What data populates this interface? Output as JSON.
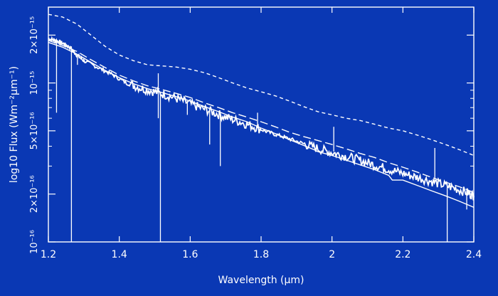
{
  "chart_data": {
    "type": "line",
    "xlabel": "Wavelength (μm)",
    "ylabel": "log10 Flux (Wm⁻²μm⁻¹)",
    "xlim": [
      1.2,
      2.4
    ],
    "ylim": [
      1e-16,
      3e-15
    ],
    "y_scale": "log",
    "grid": false,
    "colors": {
      "background": "#0a38b4",
      "foreground": "#ffffff"
    },
    "x_ticks": [
      {
        "value": 1.2,
        "label": "1.2"
      },
      {
        "value": 1.4,
        "label": "1.4"
      },
      {
        "value": 1.6,
        "label": "1.6"
      },
      {
        "value": 1.8,
        "label": "1.8"
      },
      {
        "value": 2.0,
        "label": "2"
      },
      {
        "value": 2.2,
        "label": "2.2"
      },
      {
        "value": 2.4,
        "label": "2.4"
      }
    ],
    "y_ticks": [
      {
        "value": 1e-16,
        "label": "10⁻¹⁶"
      },
      {
        "value": 2e-16,
        "label": "2×10⁻¹⁶"
      },
      {
        "value": 5e-16,
        "label": "5×10⁻¹⁶"
      },
      {
        "value": 1e-15,
        "label": "10⁻¹⁵"
      },
      {
        "value": 2e-15,
        "label": "2×10⁻¹⁵"
      }
    ],
    "series": [
      {
        "style": "short-dash",
        "x": [
          1.2,
          1.24,
          1.28,
          1.32,
          1.36,
          1.4,
          1.44,
          1.48,
          1.52,
          1.56,
          1.6,
          1.64,
          1.68,
          1.72,
          1.76,
          1.8,
          1.84,
          1.88,
          1.92,
          1.96,
          2.0,
          2.04,
          2.08,
          2.12,
          2.16,
          2.2,
          2.24,
          2.28,
          2.32,
          2.36,
          2.4
        ],
        "y": [
          2.7e-15,
          2.6e-15,
          2.35e-15,
          2e-15,
          1.7e-15,
          1.5e-15,
          1.38e-15,
          1.3e-15,
          1.28e-15,
          1.26e-15,
          1.22e-15,
          1.16e-15,
          1.08e-15,
          1e-15,
          9.3e-16,
          8.8e-16,
          8.3e-16,
          7.7e-16,
          7.1e-16,
          6.6e-16,
          6.3e-16,
          6e-16,
          5.8e-16,
          5.5e-16,
          5.2e-16,
          5e-16,
          4.7e-16,
          4.4e-16,
          4.1e-16,
          3.8e-16,
          3.5e-16
        ]
      },
      {
        "style": "noisy-solid",
        "x": [
          1.2,
          1.22,
          1.24,
          1.26,
          1.28,
          1.3,
          1.34,
          1.38,
          1.42,
          1.46,
          1.5,
          1.54,
          1.58,
          1.62,
          1.66,
          1.7,
          1.74,
          1.78,
          1.82,
          1.86,
          1.9,
          1.94,
          1.98,
          2.02,
          2.06,
          2.1,
          2.14,
          2.18,
          2.22,
          2.26,
          2.3,
          2.34,
          2.38,
          2.4
        ],
        "y": [
          1.9e-15,
          1.85e-15,
          1.78e-15,
          1.68e-15,
          1.5e-15,
          1.38e-15,
          1.25e-15,
          1.13e-15,
          1e-15,
          9.3e-16,
          8.8e-16,
          8.3e-16,
          7.7e-16,
          7.1e-16,
          6.6e-16,
          6.1e-16,
          5.7e-16,
          5.3e-16,
          4.9e-16,
          4.6e-16,
          4.3e-16,
          4e-16,
          3.75e-16,
          3.55e-16,
          3.35e-16,
          3.15e-16,
          2.95e-16,
          2.78e-16,
          2.62e-16,
          2.48e-16,
          2.33e-16,
          2.2e-16,
          2.05e-16,
          1.95e-16
        ]
      },
      {
        "style": "long-dash",
        "x": [
          1.2,
          1.24,
          1.28,
          1.32,
          1.36,
          1.4,
          1.44,
          1.48,
          1.52,
          1.56,
          1.6,
          1.64,
          1.68,
          1.72,
          1.76,
          1.8,
          1.84,
          1.88,
          1.92,
          1.96,
          2.0,
          2.04,
          2.08,
          2.12,
          2.16,
          2.2,
          2.24,
          2.28,
          2.32,
          2.36,
          2.4
        ],
        "y": [
          1.85e-15,
          1.72e-15,
          1.58e-15,
          1.4e-15,
          1.25e-15,
          1.12e-15,
          1.03e-15,
          9.6e-16,
          9.1e-16,
          8.6e-16,
          8.1e-16,
          7.5e-16,
          7e-16,
          6.5e-16,
          6.1e-16,
          5.7e-16,
          5.3e-16,
          4.9e-16,
          4.6e-16,
          4.35e-16,
          4.1e-16,
          3.85e-16,
          3.6e-16,
          3.4e-16,
          3.15e-16,
          2.95e-16,
          2.75e-16,
          2.55e-16,
          2.38e-16,
          2.22e-16,
          2.05e-16
        ]
      },
      {
        "style": "thin-solid",
        "x": [
          1.2,
          1.24,
          1.28,
          1.32,
          1.36,
          1.4,
          1.44,
          1.48,
          1.52,
          1.56,
          1.6,
          1.64,
          1.68,
          1.72,
          1.76,
          1.8,
          1.84,
          1.88,
          1.92,
          1.95,
          1.96,
          2.0,
          2.04,
          2.08,
          2.12,
          2.16,
          2.17,
          2.2,
          2.24,
          2.28,
          2.32,
          2.36,
          2.4
        ],
        "y": [
          1.8e-15,
          1.68e-15,
          1.52e-15,
          1.35e-15,
          1.2e-15,
          1.08e-15,
          9.9e-16,
          9.2e-16,
          8.7e-16,
          8.2e-16,
          7.7e-16,
          7.1e-16,
          6.6e-16,
          6.1e-16,
          5.7e-16,
          5.2e-16,
          4.8e-16,
          4.4e-16,
          4.05e-16,
          3.8e-16,
          3.7e-16,
          3.5e-16,
          3.27e-16,
          3.05e-16,
          2.85e-16,
          2.62e-16,
          2.45e-16,
          2.45e-16,
          2.27e-16,
          2.1e-16,
          1.95e-16,
          1.8e-16,
          1.65e-16
        ]
      }
    ],
    "spikes": [
      {
        "x": 1.223,
        "y_top": 1.8e-15,
        "y_bottom": 6.5e-16
      },
      {
        "x": 1.265,
        "y_top": 1.7e-15,
        "y_bottom": 1e-16
      },
      {
        "x": 1.282,
        "y_top": 1.5e-15,
        "y_bottom": 1.3e-15
      },
      {
        "x": 1.51,
        "y_top": 1.15e-15,
        "y_bottom": 6e-16
      },
      {
        "x": 1.516,
        "y_top": 8.6e-16,
        "y_bottom": 1e-16
      },
      {
        "x": 1.592,
        "y_top": 7.7e-16,
        "y_bottom": 6.3e-16
      },
      {
        "x": 1.655,
        "y_top": 6.9e-16,
        "y_bottom": 4.1e-16
      },
      {
        "x": 1.685,
        "y_top": 6.5e-16,
        "y_bottom": 3e-16
      },
      {
        "x": 1.79,
        "y_top": 6.5e-16,
        "y_bottom": 5.2e-16
      },
      {
        "x": 2.005,
        "y_top": 5.3e-16,
        "y_bottom": 3.7e-16
      },
      {
        "x": 2.29,
        "y_top": 3.9e-16,
        "y_bottom": 2.4e-16
      },
      {
        "x": 2.325,
        "y_top": 2.3e-16,
        "y_bottom": 1e-16
      },
      {
        "x": 2.38,
        "y_top": 2.1e-16,
        "y_bottom": 1.6e-16
      }
    ]
  }
}
